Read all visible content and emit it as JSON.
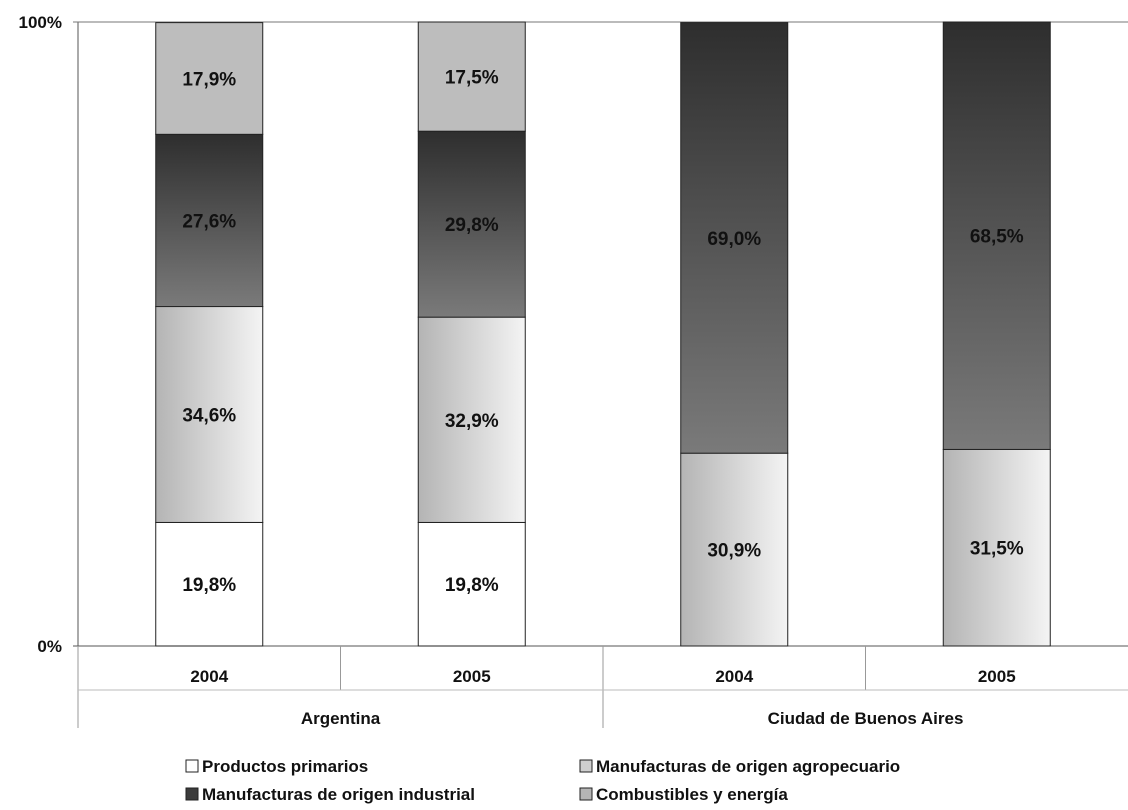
{
  "chart_data": {
    "type": "bar",
    "stacked": true,
    "percent_stacked": true,
    "ylim": [
      0,
      100
    ],
    "y_tick_labels": [
      "0%",
      "100%"
    ],
    "categories": [
      "2004",
      "2005",
      "2004",
      "2005"
    ],
    "groups": [
      {
        "label": "Argentina",
        "categories": [
          0,
          1
        ]
      },
      {
        "label": "Ciudad de Buenos Aires",
        "categories": [
          2,
          3
        ]
      }
    ],
    "series": [
      {
        "name": "Productos primarios",
        "values": [
          19.8,
          19.8,
          0,
          0
        ],
        "labels": [
          "19,8%",
          "19,8%",
          "",
          ""
        ],
        "color": "#ffffff"
      },
      {
        "name": "Manufacturas de origen agropecuario",
        "values": [
          34.6,
          32.9,
          30.9,
          31.5
        ],
        "labels": [
          "34,6%",
          "32,9%",
          "30,9%",
          "31,5%"
        ],
        "color": "#c8c8c8"
      },
      {
        "name": "Manufacturas de origen industrial",
        "values": [
          27.6,
          29.8,
          69.0,
          68.5
        ],
        "labels": [
          "27,6%",
          "29,8%",
          "69,0%",
          "68,5%"
        ],
        "color": "#4a4a4a"
      },
      {
        "name": "Combustibles y energía",
        "values": [
          17.9,
          17.5,
          0,
          0
        ],
        "labels": [
          "17,9%",
          "17,5%",
          "",
          ""
        ],
        "color": "#bdbdbd"
      }
    ],
    "legend_position": "bottom",
    "grid": false
  }
}
